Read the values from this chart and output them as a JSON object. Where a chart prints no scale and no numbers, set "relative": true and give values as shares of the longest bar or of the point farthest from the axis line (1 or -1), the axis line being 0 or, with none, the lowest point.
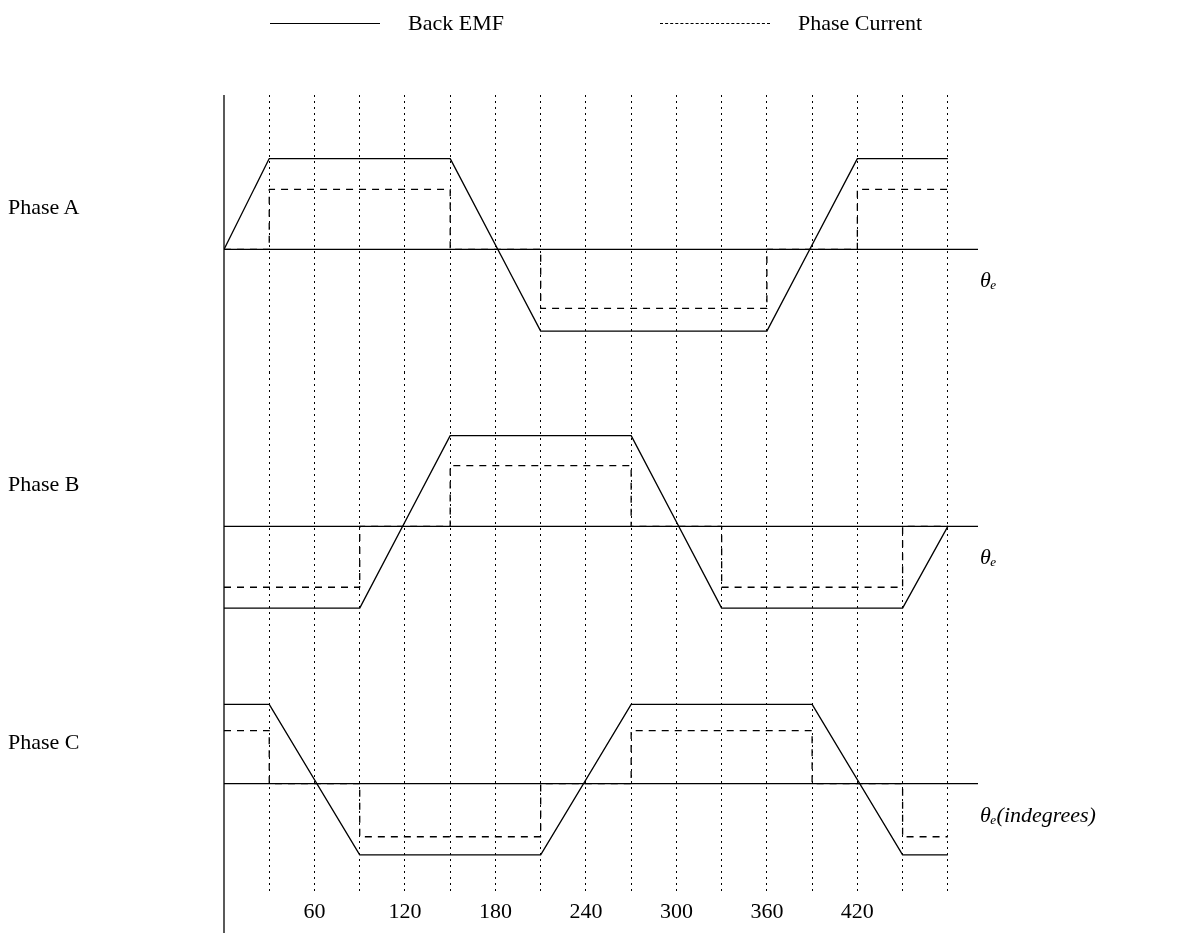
{
  "chart_data": [
    {
      "type": "line",
      "relative": true,
      "ylabel": "Phase A",
      "xlabel": "θₑ",
      "xlim": [
        0,
        500
      ],
      "xticks": [
        {
          "value": 30,
          "label": null
        },
        {
          "value": 60,
          "label": null
        },
        {
          "value": 90,
          "label": null
        },
        {
          "value": 120,
          "label": null
        },
        {
          "value": 150,
          "label": null
        },
        {
          "value": 180,
          "label": null
        },
        {
          "value": 210,
          "label": null
        },
        {
          "value": 240,
          "label": null
        },
        {
          "value": 270,
          "label": null
        },
        {
          "value": 300,
          "label": null
        },
        {
          "value": 330,
          "label": null
        },
        {
          "value": 360,
          "label": null
        },
        {
          "value": 390,
          "label": null
        },
        {
          "value": 420,
          "label": null
        },
        {
          "value": 450,
          "label": null
        },
        {
          "value": 480,
          "label": null
        }
      ],
      "tick_labels": false,
      "grid": "x",
      "legend": "top",
      "marker": "none",
      "series": [
        {
          "name": "Back EMF",
          "color": "#000000",
          "line_style": "solid",
          "x": [
            0,
            30,
            150,
            210,
            360,
            420,
            480
          ],
          "values": [
            0,
            1,
            1,
            -0.9,
            -0.9,
            1,
            1
          ]
        },
        {
          "name": "Phase Current",
          "color": "#000000",
          "line_style": "dashed",
          "x": [
            0,
            30,
            30,
            150,
            150,
            210,
            210,
            360,
            360,
            420,
            420,
            480
          ],
          "values": [
            0,
            0,
            0.66,
            0.66,
            0,
            0,
            -0.65,
            -0.65,
            0,
            0,
            0.66,
            0.66
          ]
        }
      ]
    },
    {
      "type": "line",
      "relative": true,
      "ylabel": "Phase B",
      "xlabel": "θₑ",
      "xlim": [
        0,
        500
      ],
      "xticks": [
        {
          "value": 30,
          "label": null
        },
        {
          "value": 60,
          "label": null
        },
        {
          "value": 90,
          "label": null
        },
        {
          "value": 120,
          "label": null
        },
        {
          "value": 150,
          "label": null
        },
        {
          "value": 180,
          "label": null
        },
        {
          "value": 210,
          "label": null
        },
        {
          "value": 240,
          "label": null
        },
        {
          "value": 270,
          "label": null
        },
        {
          "value": 300,
          "label": null
        },
        {
          "value": 330,
          "label": null
        },
        {
          "value": 360,
          "label": null
        },
        {
          "value": 390,
          "label": null
        },
        {
          "value": 420,
          "label": null
        },
        {
          "value": 450,
          "label": null
        },
        {
          "value": 480,
          "label": null
        }
      ],
      "tick_labels": false,
      "grid": "x",
      "legend": false,
      "marker": "none",
      "series": [
        {
          "color": "#000000",
          "line_style": "solid",
          "x": [
            0,
            90,
            150,
            270,
            330,
            450,
            480
          ],
          "values": [
            -0.9,
            -0.9,
            1,
            1,
            -0.9,
            -0.9,
            0
          ]
        },
        {
          "color": "#000000",
          "line_style": "dashed",
          "x": [
            0,
            90,
            90,
            150,
            150,
            270,
            270,
            330,
            330,
            450,
            450,
            480
          ],
          "values": [
            -0.67,
            -0.67,
            0,
            0,
            0.67,
            0.67,
            0,
            0,
            -0.67,
            -0.67,
            0,
            0
          ]
        }
      ]
    },
    {
      "type": "line",
      "relative": true,
      "ylabel": "Phase C",
      "xlabel": "θₑ(indegrees)",
      "xlim": [
        0,
        500
      ],
      "xticks": [
        {
          "value": 30,
          "label": null
        },
        60,
        {
          "value": 90,
          "label": null
        },
        120,
        {
          "value": 150,
          "label": null
        },
        180,
        {
          "value": 210,
          "label": null
        },
        240,
        {
          "value": 270,
          "label": null
        },
        300,
        {
          "value": 330,
          "label": null
        },
        360,
        {
          "value": 390,
          "label": null
        },
        420,
        {
          "value": 450,
          "label": null
        },
        {
          "value": 480,
          "label": null
        }
      ],
      "tick_labels": "x",
      "grid": "x",
      "legend": false,
      "marker": "none",
      "series": [
        {
          "color": "#000000",
          "line_style": "solid",
          "x": [
            0,
            30,
            90,
            210,
            270,
            390,
            450,
            480
          ],
          "values": [
            1,
            1,
            -0.9,
            -0.9,
            1,
            1,
            -0.9,
            -0.9
          ]
        },
        {
          "color": "#000000",
          "line_style": "dashed",
          "x": [
            0,
            30,
            30,
            90,
            90,
            210,
            210,
            270,
            270,
            390,
            390,
            450,
            450,
            480
          ],
          "values": [
            0.67,
            0.67,
            0,
            0,
            -0.67,
            -0.67,
            0,
            0,
            0.67,
            0.67,
            0,
            0,
            -0.67,
            -0.67
          ]
        }
      ]
    }
  ]
}
